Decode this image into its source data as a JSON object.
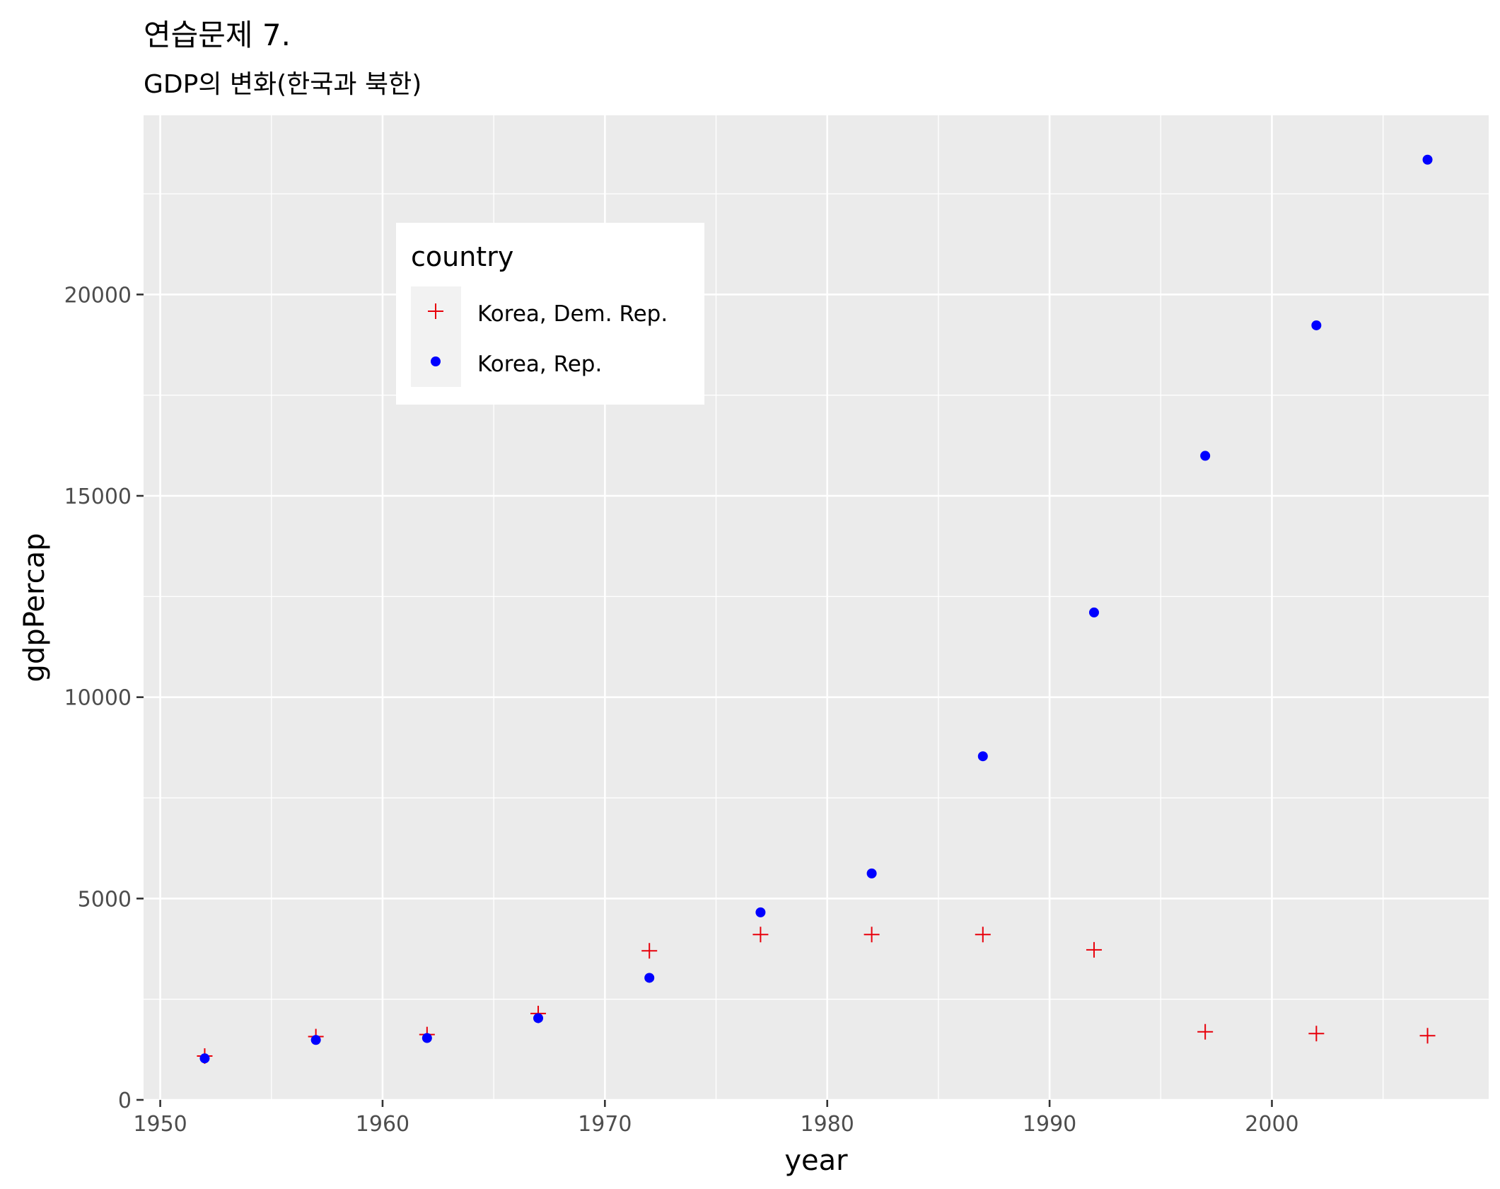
{
  "chart_data": {
    "type": "scatter",
    "title": "연습문제 7.",
    "subtitle": "GDP의 변화(한국과 북한)",
    "xlabel": "year",
    "ylabel": "gdpPercap",
    "xlim": [
      1949.25,
      2009.75
    ],
    "ylim": [
      0,
      24450
    ],
    "x_ticks": [
      1950,
      1960,
      1970,
      1980,
      1990,
      2000
    ],
    "y_ticks": [
      0,
      5000,
      10000,
      15000,
      20000
    ],
    "grid": true,
    "background": "#ebebeb",
    "legend": {
      "title": "country",
      "placement": "top-left inside"
    },
    "x": [
      1952,
      1957,
      1962,
      1967,
      1972,
      1977,
      1982,
      1987,
      1992,
      1997,
      2002,
      2007
    ],
    "series": [
      {
        "name": "Korea, Dem. Rep.",
        "marker": "plus",
        "color": "#e8000b",
        "values": [
          1088,
          1571,
          1622,
          2144,
          3702,
          4106,
          4106,
          4106,
          3726,
          1691,
          1647,
          1593
        ]
      },
      {
        "name": "Korea, Rep.",
        "marker": "circle",
        "color": "#0000ff",
        "values": [
          1031,
          1488,
          1536,
          2029,
          3031,
          4657,
          5623,
          8533,
          12104,
          15994,
          19234,
          23348
        ]
      }
    ]
  }
}
